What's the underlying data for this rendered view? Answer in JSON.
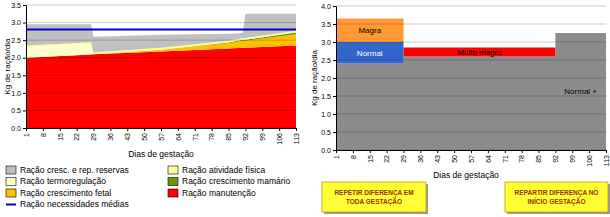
{
  "chart_data": [
    {
      "type": "area",
      "x_label": "Dias de gestação",
      "y_label": "Kg de ração/dia",
      "x": [
        1,
        28,
        29,
        57,
        85,
        91,
        92,
        113
      ],
      "xlim": [
        1,
        113
      ],
      "xticks": [
        1,
        8,
        15,
        22,
        29,
        36,
        43,
        50,
        57,
        64,
        71,
        78,
        85,
        92,
        99,
        106,
        113
      ],
      "ylim": [
        0,
        3.5
      ],
      "yticks": [
        {
          "value": 0,
          "label": "0.0"
        },
        0.5,
        {
          "value": 1,
          "label": "1.0"
        },
        1.5,
        {
          "value": 2,
          "label": "2.0"
        },
        2.5,
        {
          "value": 3,
          "label": "3.0"
        },
        3.5
      ],
      "grid": true,
      "stacked": true,
      "legend": "bottom",
      "series": [
        {
          "name": "Ração cresc. e rep. reservas",
          "color": "#c0c0c0",
          "values": [
            0.6,
            0.51,
            0.45,
            0.37,
            0.2,
            0.14,
            0.69,
            0.48
          ]
        },
        {
          "name": "Ração atividade física",
          "color": "#ffff99",
          "values": [
            0.05,
            0.05,
            0.05,
            0.05,
            0.05,
            0.05,
            0.05,
            0.05
          ]
        },
        {
          "name": "Ração termoregulação",
          "color": "#ffffcc",
          "values": [
            0.3,
            0.3,
            0,
            0,
            0,
            0,
            0,
            0
          ]
        },
        {
          "name": "Ração crescimento mamário",
          "color": "#669900",
          "values": [
            0,
            0,
            0,
            0,
            0.02,
            0.03,
            0.03,
            0.05
          ]
        },
        {
          "name": "Ração crescimento fetal",
          "color": "#ffc000",
          "values": [
            0,
            0,
            0,
            0.05,
            0.15,
            0.2,
            0.2,
            0.32
          ]
        },
        {
          "name": "Ração manutenção",
          "color": "#ff0000",
          "values": [
            2.0,
            2.09,
            2.1,
            2.18,
            2.26,
            2.28,
            2.28,
            2.35
          ]
        },
        {
          "name": "Ração necessidades médias",
          "color": "#0000cc",
          "type": "line",
          "values": [
            2.8,
            2.8,
            2.8,
            2.8,
            2.8,
            2.8,
            2.8,
            2.8
          ]
        }
      ]
    },
    {
      "type": "area",
      "x_label": "Dias de gestação",
      "y_label": "Kg de ração/dia",
      "x": [
        1,
        29,
        92,
        113
      ],
      "xlim": [
        1,
        113
      ],
      "xticks": [
        1,
        8,
        15,
        22,
        29,
        36,
        43,
        50,
        57,
        64,
        71,
        78,
        85,
        92,
        99,
        106,
        113
      ],
      "ylim": [
        0,
        4
      ],
      "yticks": [
        {
          "value": 0,
          "label": "0.0"
        },
        0.5,
        {
          "value": 1,
          "label": "1.0"
        },
        1.5,
        {
          "value": 2,
          "label": "2.0"
        },
        2.5,
        {
          "value": 3,
          "label": "3.0"
        },
        3.5,
        {
          "value": 4,
          "label": "4.0"
        }
      ],
      "grid": true,
      "stacked": true,
      "line_style": "step",
      "series": [
        {
          "name": "Magra",
          "color": "#ff9933",
          "values": [
            0.65,
            0,
            0,
            0
          ]
        },
        {
          "name": "Normal",
          "color": "#3366cc",
          "values": [
            0.6,
            0,
            0,
            0
          ]
        },
        {
          "name": "Muito magra",
          "color": "#ff0000",
          "values": [
            0,
            0.25,
            0,
            0
          ]
        },
        {
          "name": "Normal +",
          "color": "#8c8c8c",
          "values": [
            2.4,
            2.6,
            3.25,
            3.25
          ]
        }
      ],
      "annotations": [
        [
          "REPETIR DIFERENÇA EM",
          "TODA GESTAÇÃO"
        ],
        [
          "REPARTIR DIFERENÇA NO",
          "INÍCIO GESTAÇÃO"
        ]
      ]
    }
  ]
}
